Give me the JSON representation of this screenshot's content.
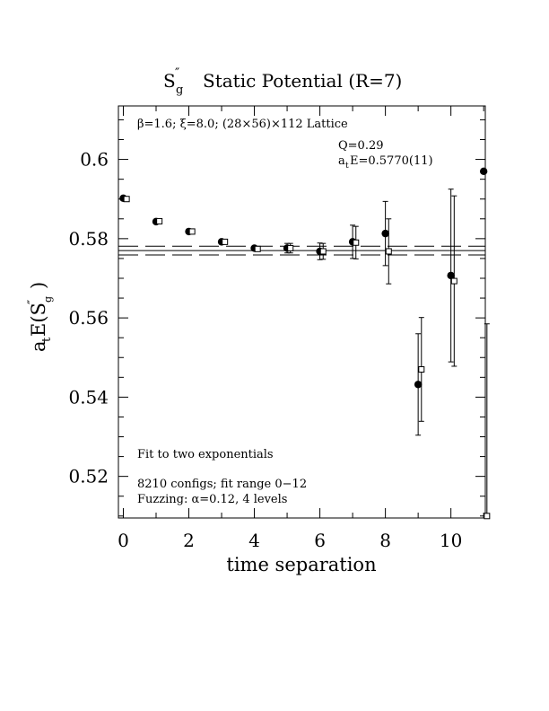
{
  "chart_data": {
    "type": "scatter",
    "title": "S″g  Static Potential (R=7)",
    "title_main": "S",
    "title_sup": "″",
    "title_sub": "g",
    "title_rest": "Static Potential (R=7)",
    "xlabel": "time separation",
    "ylabel": "a_tE(S″g)",
    "ylabel_parts": {
      "a": "a",
      "t": "t",
      "E": "E(S",
      "sup": "″",
      "g": "g",
      "close": ")"
    },
    "xlim": [
      -0.15,
      11.05
    ],
    "ylim": [
      0.5095,
      0.6135
    ],
    "xticks": [
      0,
      2,
      4,
      6,
      8,
      10
    ],
    "xtick_labels": [
      "0",
      "2",
      "4",
      "6",
      "8",
      "10"
    ],
    "yticks": [
      0.52,
      0.54,
      0.56,
      0.58,
      0.6
    ],
    "ytick_labels": [
      "0.52",
      "0.54",
      "0.56",
      "0.58",
      "0.6"
    ],
    "grid": false,
    "annotations": {
      "lattice": "β=1.6; ξ=8.0; (28×56)×112 Lattice",
      "q": "Q=0.29",
      "fit_value_prefix": "a",
      "fit_value_sub": "t",
      "fit_value_rest": "E=0.5770(11)",
      "fit_type": "Fit to two exponentials",
      "configs": "8210 configs; fit range 0−12",
      "fuzzing": "Fuzzing: α=0.12, 4 levels"
    },
    "fit": {
      "value": 0.577,
      "error": 0.0011,
      "x_range": [
        -0.15,
        11.05
      ]
    },
    "series": [
      {
        "marker": "filled-circle",
        "x": [
          0,
          1,
          2,
          3,
          4,
          5,
          6,
          7,
          8,
          9,
          10,
          11
        ],
        "y": [
          0.5902,
          0.5843,
          0.5818,
          0.5792,
          0.5776,
          0.5776,
          0.5768,
          0.5792,
          0.5813,
          0.5432,
          0.5707,
          0.597
        ],
        "err": [
          0.0003,
          0.0003,
          0.0003,
          0.0004,
          0.0005,
          0.0012,
          0.0021,
          0.0042,
          0.0081,
          0.0128,
          0.0218,
          0.0
        ]
      },
      {
        "marker": "open-square",
        "x": [
          0.1,
          1.1,
          2.1,
          3.1,
          4.1,
          5.1,
          6.1,
          7.1,
          8.1,
          9.1,
          10.1,
          11.1
        ],
        "y": [
          0.59,
          0.5844,
          0.5818,
          0.5792,
          0.5774,
          0.5776,
          0.5768,
          0.579,
          0.5768,
          0.547,
          0.5693,
          0.51
        ],
        "err": [
          0.0003,
          0.0003,
          0.0003,
          0.0004,
          0.0005,
          0.0012,
          0.002,
          0.0041,
          0.0082,
          0.0131,
          0.0215,
          0.0485
        ]
      }
    ]
  }
}
